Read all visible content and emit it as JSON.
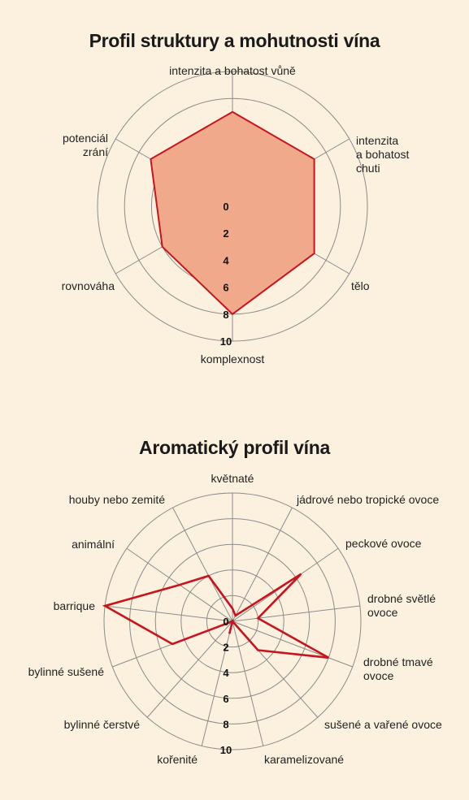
{
  "chart_data": [
    {
      "type": "radar",
      "title": "Profil struktury a mohutnosti vína",
      "categories": [
        "intenzita a bohatost vůně",
        "intenzita\na bohatost\nchuti",
        "tělo",
        "komplexnost",
        "rovnováha",
        "potenciál\nzrání"
      ],
      "series": [
        {
          "values": [
            7,
            7,
            7,
            8,
            6,
            7
          ]
        }
      ],
      "rlim": [
        0,
        10
      ],
      "ticks": [
        "0",
        "2",
        "4",
        "6",
        "8",
        "10"
      ],
      "line_color": "#c8141e",
      "fill_color": "#f0a98a"
    },
    {
      "type": "radar",
      "title": "Aromatický profil vína",
      "categories": [
        "květnaté",
        "jádrové nebo tropické ovoce",
        "peckové ovoce",
        "drobné světlé\novoce",
        "drobné tmavé\novoce",
        "sušené a vařené ovoce",
        "karamelizované",
        "kořenité",
        "bylinné čerstvé",
        "bylinné sušené",
        "barrique",
        "animální",
        "houby nebo zemité"
      ],
      "series": [
        {
          "values": [
            1,
            0.5,
            6.5,
            2,
            8,
            3,
            0,
            1,
            0,
            5,
            10,
            5,
            4
          ]
        }
      ],
      "rlim": [
        0,
        10
      ],
      "ticks": [
        "0",
        "2",
        "4",
        "6",
        "8",
        "10"
      ],
      "line_color": "#c8141e"
    }
  ]
}
